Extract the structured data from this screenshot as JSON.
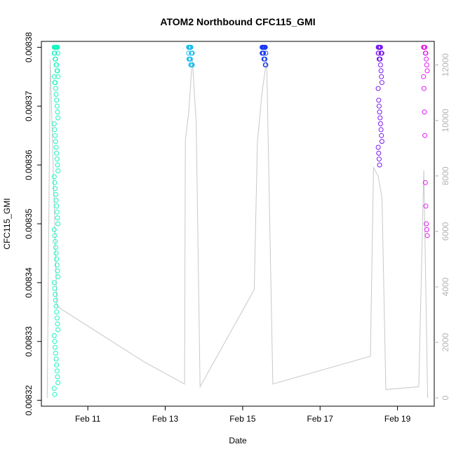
{
  "chart_data": {
    "type": "scatter",
    "title": "ATOM2 Northbound CFC115_GMI",
    "xlabel": "Date",
    "ylabel": "CFC115_GMI",
    "x_tick_labels": [
      {
        "label": "Feb 11",
        "day": 11
      },
      {
        "label": "Feb 13",
        "day": 13
      },
      {
        "label": "Feb 15",
        "day": 15
      },
      {
        "label": "Feb 17",
        "day": 17
      },
      {
        "label": "Feb 19",
        "day": 19
      }
    ],
    "y_tick_labels": [
      "0.00832",
      "0.00833",
      "0.00834",
      "0.00835",
      "0.00836",
      "0.00837",
      "0.00838"
    ],
    "y_ticks": [
      0.00832,
      0.00833,
      0.00834,
      0.00835,
      0.00836,
      0.00837,
      0.00838
    ],
    "ylim": [
      0.008319,
      0.008381
    ],
    "xlim": [
      9.8,
      19.95
    ],
    "y2_tick_labels": [
      "0",
      "2000",
      "4000",
      "6000",
      "8000",
      "10000",
      "12000"
    ],
    "y2_ticks": [
      0,
      2000,
      4000,
      6000,
      8000,
      10000,
      12000
    ],
    "y2lim": [
      -300,
      12850
    ],
    "altitude_color": "#c8c8c8",
    "right_axis_color": "#b4b4b4",
    "flight_colors": [
      "#19f5c0",
      "#19bdf0",
      "#1a3bf5",
      "#7a1af0",
      "#e619f0"
    ],
    "series": [
      {
        "day": 10.18,
        "values": [
          0.00838,
          0.00838,
          0.00838,
          0.00838,
          0.00838,
          0.00838,
          0.00838,
          0.00838,
          0.008379,
          0.008379,
          0.008379,
          0.008378,
          0.008378,
          0.008377,
          0.008377,
          0.008376,
          0.008376,
          0.008375,
          0.008375,
          0.008374,
          0.008374,
          0.008373,
          0.008372,
          0.008371,
          0.00837,
          0.008369,
          0.008368,
          0.008367,
          0.008366,
          0.008365,
          0.008364,
          0.008363,
          0.008362,
          0.008361,
          0.00836,
          0.008359,
          0.008358,
          0.008357,
          0.008356,
          0.008355,
          0.008354,
          0.008353,
          0.008352,
          0.008351,
          0.00835,
          0.008349,
          0.008348,
          0.008347,
          0.008346,
          0.008345,
          0.008344,
          0.008343,
          0.008342,
          0.008341,
          0.00834,
          0.008339,
          0.008338,
          0.008337,
          0.008336,
          0.008335,
          0.008334,
          0.008333,
          0.008332,
          0.008331,
          0.00833,
          0.008329,
          0.008328,
          0.008327,
          0.008326,
          0.008325,
          0.008324,
          0.008323,
          0.008322,
          0.008321
        ]
      },
      {
        "day": 13.65,
        "values": [
          0.00838,
          0.00838,
          0.00838,
          0.00838,
          0.00838,
          0.00838,
          0.008379,
          0.008379,
          0.008379,
          0.008379,
          0.008378,
          0.008378,
          0.008378,
          0.008378,
          0.008377,
          0.008377,
          0.008377,
          0.008377
        ]
      },
      {
        "day": 15.55,
        "values": [
          0.00838,
          0.00838,
          0.00838,
          0.00838,
          0.00838,
          0.00838,
          0.00838,
          0.00838,
          0.008379,
          0.008379,
          0.008379,
          0.008379,
          0.008379,
          0.008378,
          0.008378,
          0.008378,
          0.008377,
          0.008377
        ]
      },
      {
        "day": 18.55,
        "values": [
          0.00838,
          0.00838,
          0.00838,
          0.00838,
          0.00838,
          0.00838,
          0.008379,
          0.008379,
          0.008379,
          0.008379,
          0.008379,
          0.008378,
          0.008378,
          0.008378,
          0.008377,
          0.008376,
          0.008375,
          0.008374,
          0.008373,
          0.008371,
          0.00837,
          0.008369,
          0.008368,
          0.008367,
          0.008366,
          0.008365,
          0.008364,
          0.008363,
          0.008362,
          0.008361,
          0.00836
        ]
      },
      {
        "day": 19.72,
        "values": [
          0.00838,
          0.00838,
          0.00838,
          0.00838,
          0.008379,
          0.008379,
          0.008378,
          0.008377,
          0.008376,
          0.008375,
          0.008373,
          0.008369,
          0.008365,
          0.008357,
          0.008353,
          0.00835,
          0.008349,
          0.008348
        ]
      }
    ],
    "altitude_profile": [
      {
        "day": 9.95,
        "alt": 0
      },
      {
        "day": 10.03,
        "alt": 12200
      },
      {
        "day": 10.2,
        "alt": 3300
      },
      {
        "day": 12.45,
        "alt": 1300
      },
      {
        "day": 13.5,
        "alt": 500
      },
      {
        "day": 13.52,
        "alt": 9300
      },
      {
        "day": 13.6,
        "alt": 10200
      },
      {
        "day": 13.7,
        "alt": 12200
      },
      {
        "day": 13.8,
        "alt": 9900
      },
      {
        "day": 13.9,
        "alt": 400
      },
      {
        "day": 15.3,
        "alt": 3900
      },
      {
        "day": 15.38,
        "alt": 9200
      },
      {
        "day": 15.5,
        "alt": 11000
      },
      {
        "day": 15.62,
        "alt": 12200
      },
      {
        "day": 15.78,
        "alt": 500
      },
      {
        "day": 18.3,
        "alt": 1500
      },
      {
        "day": 18.38,
        "alt": 8300
      },
      {
        "day": 18.5,
        "alt": 8000
      },
      {
        "day": 18.6,
        "alt": 7200
      },
      {
        "day": 18.7,
        "alt": 300
      },
      {
        "day": 19.55,
        "alt": 400
      },
      {
        "day": 19.68,
        "alt": 8200
      },
      {
        "day": 19.78,
        "alt": 0
      }
    ]
  }
}
